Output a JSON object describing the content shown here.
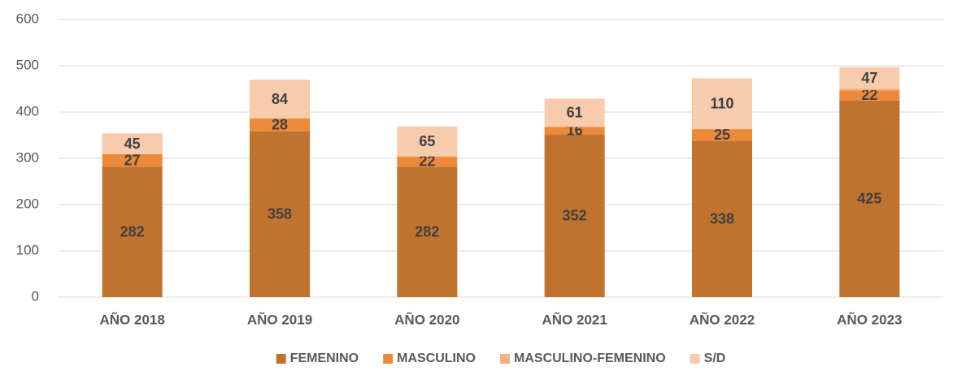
{
  "chart_data": {
    "type": "stacked_bar",
    "categories": [
      "AÑO 2018",
      "AÑO 2019",
      "AÑO 2020",
      "AÑO 2021",
      "AÑO 2022",
      "AÑO 2023"
    ],
    "series": [
      {
        "name": "FEMENINO",
        "color": "#c0732f",
        "values": [
          282,
          358,
          282,
          352,
          338,
          425
        ]
      },
      {
        "name": "MASCULINO",
        "color": "#ed8a3a",
        "values": [
          27,
          28,
          22,
          16,
          25,
          22
        ]
      },
      {
        "name": "MASCULINO-FEMENINO",
        "color": "#f4b183",
        "values": [
          0,
          0,
          0,
          0,
          0,
          3
        ],
        "show_labels": false
      },
      {
        "name": "S/D",
        "color": "#f8cbad",
        "values": [
          45,
          84,
          65,
          61,
          110,
          47
        ]
      }
    ],
    "ylim": [
      0,
      600
    ],
    "yticks": [
      0,
      100,
      200,
      300,
      400,
      500,
      600
    ],
    "grid": true,
    "legend": "bottom"
  }
}
